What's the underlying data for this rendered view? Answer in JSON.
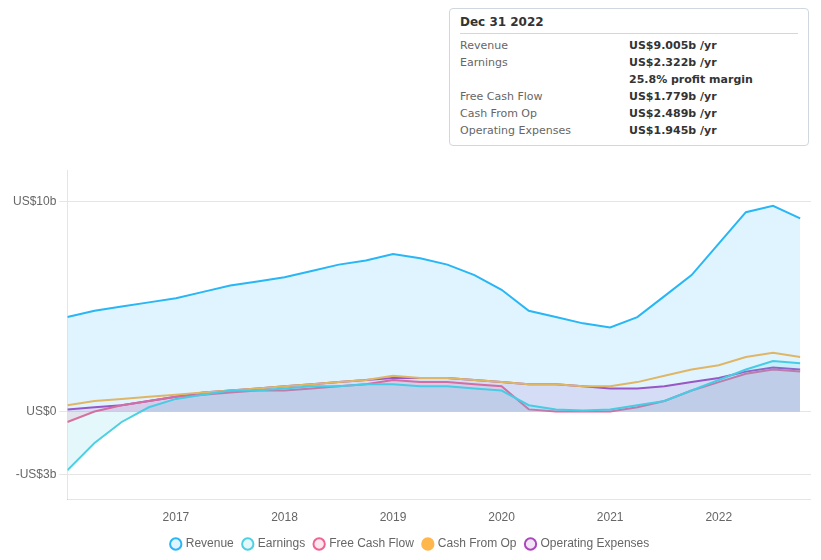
{
  "chart_data": {
    "type": "line",
    "title": "Dec 31 2022",
    "annotations": [
      {
        "label": "Revenue",
        "text": "US$9.005b /yr"
      },
      {
        "label": "Earnings",
        "text": "US$2.322b /yr"
      },
      {
        "text": "25.8% profit margin"
      },
      {
        "label": "Free Cash Flow",
        "text": "US$1.779b /yr"
      },
      {
        "label": "Cash From Op",
        "text": "US$2.489b /yr"
      },
      {
        "label": "Operating Expenses",
        "text": "US$1.945b /yr"
      }
    ],
    "x": [
      2016.0,
      2016.25,
      2016.5,
      2016.75,
      2017.0,
      2017.25,
      2017.5,
      2017.75,
      2018.0,
      2018.25,
      2018.5,
      2018.75,
      2019.0,
      2019.25,
      2019.5,
      2019.75,
      2020.0,
      2020.25,
      2020.5,
      2020.75,
      2021.0,
      2021.25,
      2021.5,
      2021.75,
      2022.0,
      2022.25,
      2022.5,
      2022.75
    ],
    "series": [
      {
        "name": "Revenue",
        "color": "#29b6f6",
        "type": "area",
        "values": [
          4.5,
          4.8,
          5.0,
          5.2,
          5.4,
          5.7,
          6.0,
          6.2,
          6.4,
          6.7,
          7.0,
          7.2,
          7.5,
          7.3,
          7.0,
          6.5,
          5.8,
          4.8,
          4.5,
          4.2,
          4.0,
          4.5,
          5.5,
          6.5,
          8.0,
          9.5,
          9.8,
          9.2
        ]
      },
      {
        "name": "Earnings",
        "color": "#4dd0e1",
        "type": "area",
        "values": [
          -2.8,
          -1.5,
          -0.5,
          0.2,
          0.6,
          0.8,
          1.0,
          1.0,
          1.1,
          1.2,
          1.2,
          1.3,
          1.3,
          1.2,
          1.2,
          1.1,
          1.0,
          0.3,
          0.1,
          0.05,
          0.1,
          0.3,
          0.5,
          1.0,
          1.5,
          2.0,
          2.4,
          2.3
        ]
      },
      {
        "name": "Free Cash Flow",
        "color": "#f06292",
        "type": "area",
        "values": [
          -0.5,
          0.0,
          0.3,
          0.5,
          0.7,
          0.8,
          0.9,
          1.0,
          1.0,
          1.1,
          1.2,
          1.3,
          1.5,
          1.4,
          1.4,
          1.3,
          1.2,
          0.1,
          0.0,
          0.0,
          0.0,
          0.2,
          0.5,
          1.0,
          1.4,
          1.8,
          2.0,
          1.9
        ]
      },
      {
        "name": "Cash From Op",
        "color": "#ffb74d",
        "type": "line",
        "values": [
          0.3,
          0.5,
          0.6,
          0.7,
          0.8,
          0.9,
          1.0,
          1.1,
          1.2,
          1.3,
          1.4,
          1.5,
          1.7,
          1.6,
          1.6,
          1.5,
          1.4,
          1.3,
          1.3,
          1.2,
          1.2,
          1.4,
          1.7,
          2.0,
          2.2,
          2.6,
          2.8,
          2.6
        ]
      },
      {
        "name": "Operating Expenses",
        "color": "#ab47bc",
        "type": "area",
        "values": [
          0.1,
          0.2,
          0.3,
          0.5,
          0.7,
          0.9,
          1.0,
          1.1,
          1.2,
          1.3,
          1.4,
          1.5,
          1.6,
          1.6,
          1.6,
          1.5,
          1.4,
          1.3,
          1.3,
          1.2,
          1.1,
          1.1,
          1.2,
          1.4,
          1.6,
          1.9,
          2.1,
          2.0
        ]
      }
    ],
    "xlim": [
      2016.0,
      2022.85
    ],
    "xticks": [
      2017,
      2018,
      2019,
      2020,
      2021,
      2022
    ],
    "ylim": [
      -4.2,
      11.5
    ],
    "yticks": [
      {
        "value": 10,
        "label": "US$10b"
      },
      {
        "value": 0,
        "label": "US$0"
      },
      {
        "value": -3,
        "label": "-US$3b"
      }
    ],
    "grid": "y",
    "legend": "bottom"
  }
}
